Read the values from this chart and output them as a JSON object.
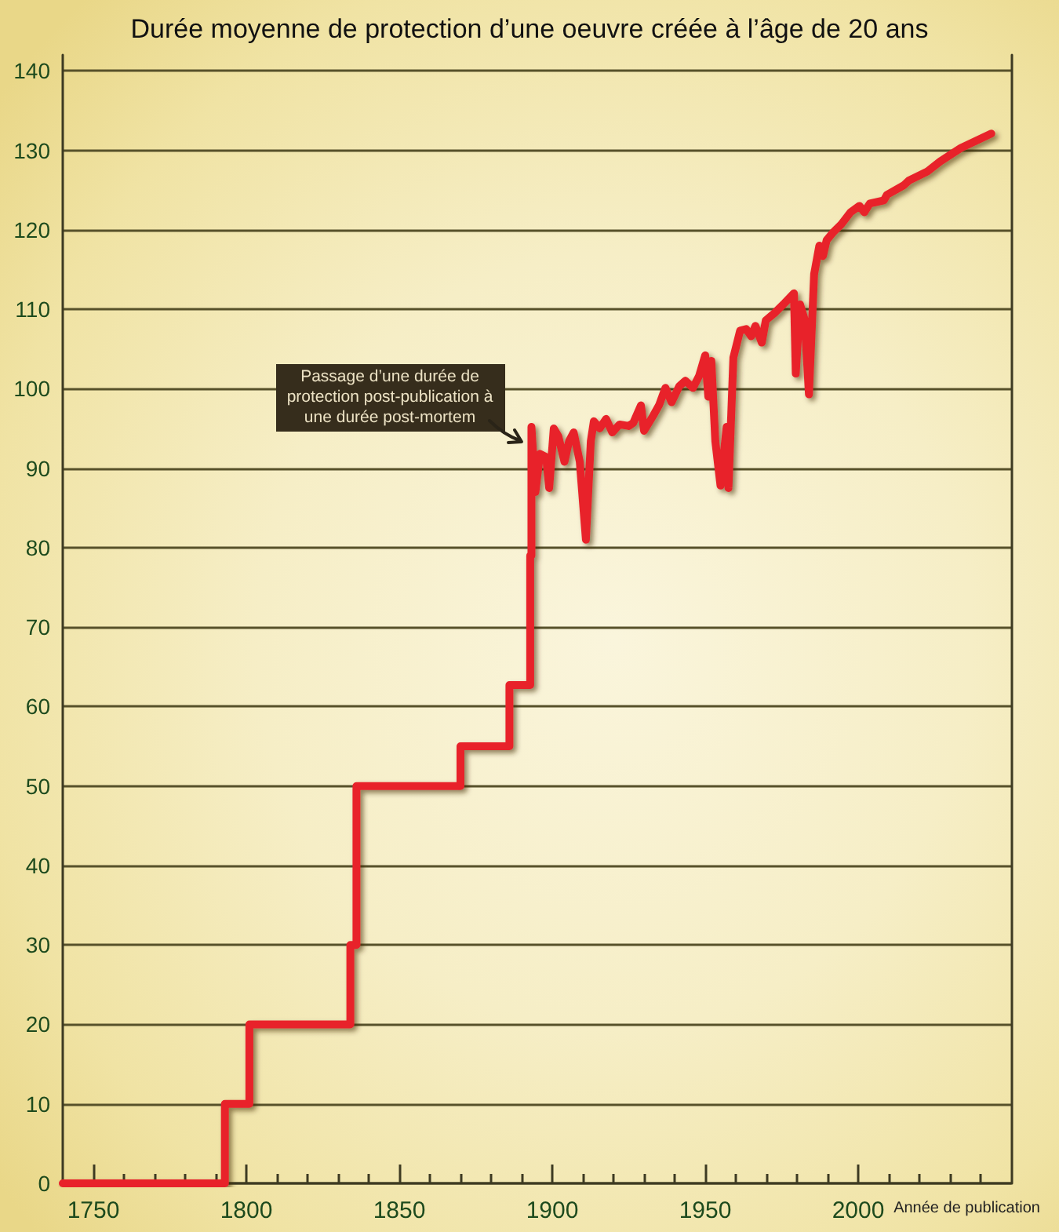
{
  "chart_data": {
    "type": "line",
    "title": "Durée moyenne de protection d’une oeuvre créée à l’âge de 20 ans",
    "xlabel": "Année de publication",
    "x": [
      1740,
      1793,
      1793,
      1801,
      1801,
      1834,
      1834,
      1836,
      1836,
      1870,
      1870,
      1886,
      1886,
      1892.8,
      1892.8,
      1893.2,
      1893.2,
      1894.5,
      1896,
      1898,
      1899,
      1900.5,
      1902,
      1904,
      1905.5,
      1907,
      1909,
      1911,
      1912.6,
      1913.6,
      1915.5,
      1917.6,
      1919.6,
      1922,
      1925,
      1926.5,
      1929,
      1930,
      1933,
      1935,
      1937,
      1939,
      1941.5,
      1943.5,
      1946,
      1948,
      1950,
      1951,
      1952,
      1953.3,
      1955,
      1957,
      1957.6,
      1959.2,
      1961.4,
      1963.4,
      1965,
      1966.4,
      1968.5,
      1969.8,
      1972.6,
      1976,
      1979,
      1979.6,
      1981,
      1982.5,
      1983.9,
      1985.6,
      1987.3,
      1988.5,
      1989.7,
      1991.9,
      1994.5,
      1997.5,
      2000.4,
      2002,
      2003.8,
      2008.4,
      2009.4,
      2014.9,
      2016.6,
      2022.5,
      2026.8,
      2033.6,
      2043.5
    ],
    "values": [
      0,
      0,
      10,
      10,
      20,
      20,
      30,
      30,
      50,
      50,
      55,
      55,
      62.7,
      62.7,
      79,
      79,
      95.2,
      87,
      91.8,
      91.4,
      87.5,
      95,
      94,
      90.8,
      93.4,
      94.5,
      90.8,
      81,
      93.4,
      95.9,
      95,
      96.2,
      94.5,
      95.5,
      95.3,
      95.7,
      97.9,
      94.7,
      96.6,
      98,
      100.1,
      98.3,
      100.3,
      101,
      100.1,
      101.6,
      104.2,
      99,
      103.5,
      93.4,
      87.8,
      95.2,
      87.5,
      103.9,
      107.3,
      107.5,
      106.6,
      107.9,
      105.8,
      108.6,
      109.5,
      110.8,
      112,
      101.9,
      110.6,
      108.7,
      99.3,
      114.4,
      118,
      116.7,
      118.7,
      119.7,
      120.7,
      122.2,
      123,
      122.2,
      123.3,
      123.7,
      124.4,
      125.6,
      126.2,
      127.3,
      128.6,
      130.3,
      132.1
    ],
    "color": "#e8242b",
    "line_style": "solid",
    "xlim": [
      1740,
      2050
    ],
    "xticks": [
      1750,
      {
        "value": 1760,
        "label": null
      },
      {
        "value": 1770,
        "label": null
      },
      {
        "value": 1780,
        "label": null
      },
      {
        "value": 1790,
        "label": null
      },
      1800,
      {
        "value": 1810,
        "label": null
      },
      {
        "value": 1820,
        "label": null
      },
      {
        "value": 1830,
        "label": null
      },
      {
        "value": 1840,
        "label": null
      },
      1850,
      {
        "value": 1860,
        "label": null
      },
      {
        "value": 1870,
        "label": null
      },
      {
        "value": 1880,
        "label": null
      },
      {
        "value": 1890,
        "label": null
      },
      1900,
      {
        "value": 1910,
        "label": null
      },
      {
        "value": 1920,
        "label": null
      },
      {
        "value": 1930,
        "label": null
      },
      {
        "value": 1940,
        "label": null
      },
      1950,
      {
        "value": 1960,
        "label": null
      },
      {
        "value": 1970,
        "label": null
      },
      {
        "value": 1980,
        "label": null
      },
      {
        "value": 1990,
        "label": null
      },
      2000,
      {
        "value": 2010,
        "label": null
      },
      {
        "value": 2020,
        "label": null
      },
      {
        "value": 2030,
        "label": null
      },
      {
        "value": 2040,
        "label": null
      }
    ],
    "ylim": [
      0,
      142
    ],
    "yticks": [
      0,
      10,
      20,
      30,
      40,
      50,
      60,
      70,
      80,
      90,
      100,
      110,
      120,
      130,
      140
    ],
    "grid": "y",
    "annotations": [
      {
        "text": "Passage d’une durée de protection post-publication à une durée post-mortem",
        "x": 1890,
        "y": 93
      }
    ]
  }
}
